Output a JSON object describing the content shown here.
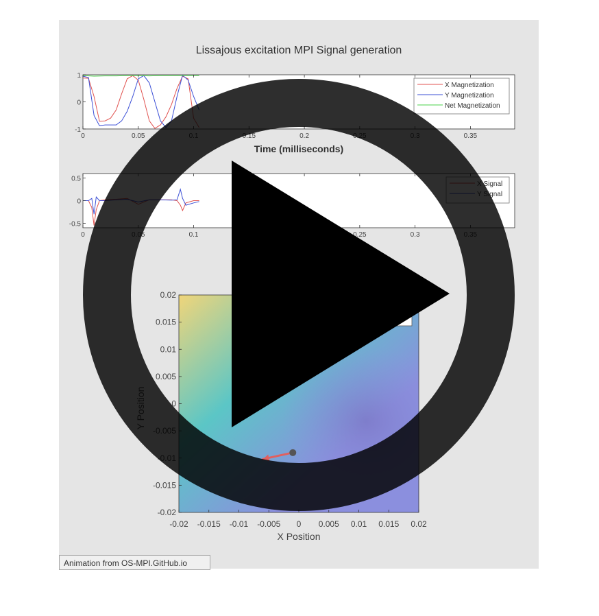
{
  "figure": {
    "title": "Lissajous excitation MPI Signal generation",
    "caption": "Animation from OS-MPI.GitHub.io",
    "play_icon": "play-overlay-icon"
  },
  "chart_data": [
    {
      "type": "line",
      "panel": "magnetization",
      "xlabel": "Time (milliseconds)",
      "ylabel": "",
      "xlim": [
        0,
        0.39
      ],
      "ylim": [
        -1,
        1
      ],
      "xticks": [
        "0",
        "0.05",
        "0.1",
        "0.15",
        "0.2",
        "0.25",
        "0.3",
        "0.35"
      ],
      "yticks": [
        "-1",
        "0",
        "1"
      ],
      "legend_position": "top-right",
      "series": [
        {
          "name": "X Magnetization",
          "color": "#e0524f",
          "x": [
            0,
            0.005,
            0.01,
            0.015,
            0.02,
            0.025,
            0.03,
            0.035,
            0.04,
            0.045,
            0.05,
            0.055,
            0.06,
            0.065,
            0.07,
            0.075,
            0.08,
            0.085,
            0.09,
            0.095,
            0.1,
            0.105
          ],
          "y": [
            0.88,
            0.87,
            0.2,
            -0.72,
            -0.7,
            -0.6,
            -0.3,
            0.3,
            0.85,
            0.97,
            0.8,
            0.1,
            -0.7,
            -0.98,
            -0.85,
            -0.55,
            -0.1,
            0.5,
            0.95,
            0.85,
            -0.6,
            -0.95
          ]
        },
        {
          "name": "Y Magnetization",
          "color": "#3b4fd6",
          "x": [
            0,
            0.005,
            0.01,
            0.015,
            0.02,
            0.025,
            0.03,
            0.035,
            0.04,
            0.045,
            0.05,
            0.055,
            0.06,
            0.065,
            0.07,
            0.075,
            0.08,
            0.085,
            0.09,
            0.095,
            0.1,
            0.105
          ],
          "y": [
            0.95,
            0.9,
            -0.5,
            -0.88,
            -0.85,
            -0.85,
            -0.85,
            -0.7,
            -0.35,
            0.2,
            0.85,
            0.97,
            0.7,
            0.0,
            -0.7,
            -0.95,
            -0.7,
            0.2,
            0.98,
            0.8,
            0.2,
            -0.3
          ]
        },
        {
          "name": "Net Magnetization",
          "color": "#4bd04b",
          "x": [
            0,
            0.01,
            0.02,
            0.03,
            0.04,
            0.05,
            0.06,
            0.07,
            0.08,
            0.09,
            0.1,
            0.105
          ],
          "y": [
            0.97,
            0.95,
            0.96,
            0.96,
            0.97,
            0.97,
            0.96,
            0.97,
            0.97,
            0.97,
            0.97,
            0.97
          ]
        }
      ]
    },
    {
      "type": "line",
      "panel": "signal",
      "xlabel": "",
      "ylabel": "",
      "xlim": [
        0,
        0.39
      ],
      "ylim": [
        -0.6,
        0.6
      ],
      "xticks": [
        "0",
        "0.05",
        "0.1",
        "0.15",
        "0.2",
        "0.25",
        "0.3",
        "0.35"
      ],
      "yticks": [
        "-0.5",
        "0",
        "0.5"
      ],
      "legend_position": "top-right",
      "series": [
        {
          "name": "X Signal",
          "color": "#e0524f",
          "x": [
            0,
            0.005,
            0.008,
            0.01,
            0.012,
            0.015,
            0.02,
            0.03,
            0.04,
            0.05,
            0.06,
            0.07,
            0.08,
            0.085,
            0.088,
            0.09,
            0.093,
            0.1,
            0.105
          ],
          "y": [
            0,
            0,
            -0.15,
            -0.55,
            -0.2,
            0,
            0.02,
            0.03,
            0.05,
            -0.08,
            0.02,
            0.02,
            0.02,
            0,
            -0.1,
            -0.22,
            -0.05,
            0,
            0
          ]
        },
        {
          "name": "Y Signal",
          "color": "#3b4fd6",
          "x": [
            0,
            0.005,
            0.008,
            0.01,
            0.012,
            0.015,
            0.02,
            0.03,
            0.04,
            0.05,
            0.06,
            0.07,
            0.08,
            0.085,
            0.088,
            0.09,
            0.093,
            0.1,
            0.105
          ],
          "y": [
            0,
            0,
            0.05,
            -0.3,
            0.08,
            0,
            0,
            0.02,
            0.03,
            -0.03,
            0.02,
            0.02,
            0.01,
            0.02,
            0.25,
            0.05,
            -0.1,
            -0.05,
            -0.02
          ]
        }
      ]
    },
    {
      "type": "heatmap",
      "panel": "field-of-view",
      "xlabel": "X Position",
      "ylabel": "Y Position",
      "xlim": [
        -0.02,
        0.02
      ],
      "ylim": [
        -0.02,
        0.02
      ],
      "xticks": [
        "-0.02",
        "-0.015",
        "-0.01",
        "-0.005",
        "0",
        "0.005",
        "0.01",
        "0.015",
        "0.02"
      ],
      "yticks": [
        "0.02",
        "0.015",
        "0.01",
        "0.005",
        "0",
        "-0.005",
        "-0.01",
        "-0.015",
        "-0.02"
      ],
      "colors": {
        "high": "#f0d57a",
        "mid": "#5bc6c6",
        "low": "#8b8fde"
      },
      "marker": {
        "x": -0.001,
        "y": -0.009,
        "color": "#555555"
      },
      "arrow": {
        "x_from": -0.001,
        "y_from": -0.009,
        "x_to": -0.006,
        "y_to": -0.0102,
        "color": "#e06060"
      }
    }
  ]
}
